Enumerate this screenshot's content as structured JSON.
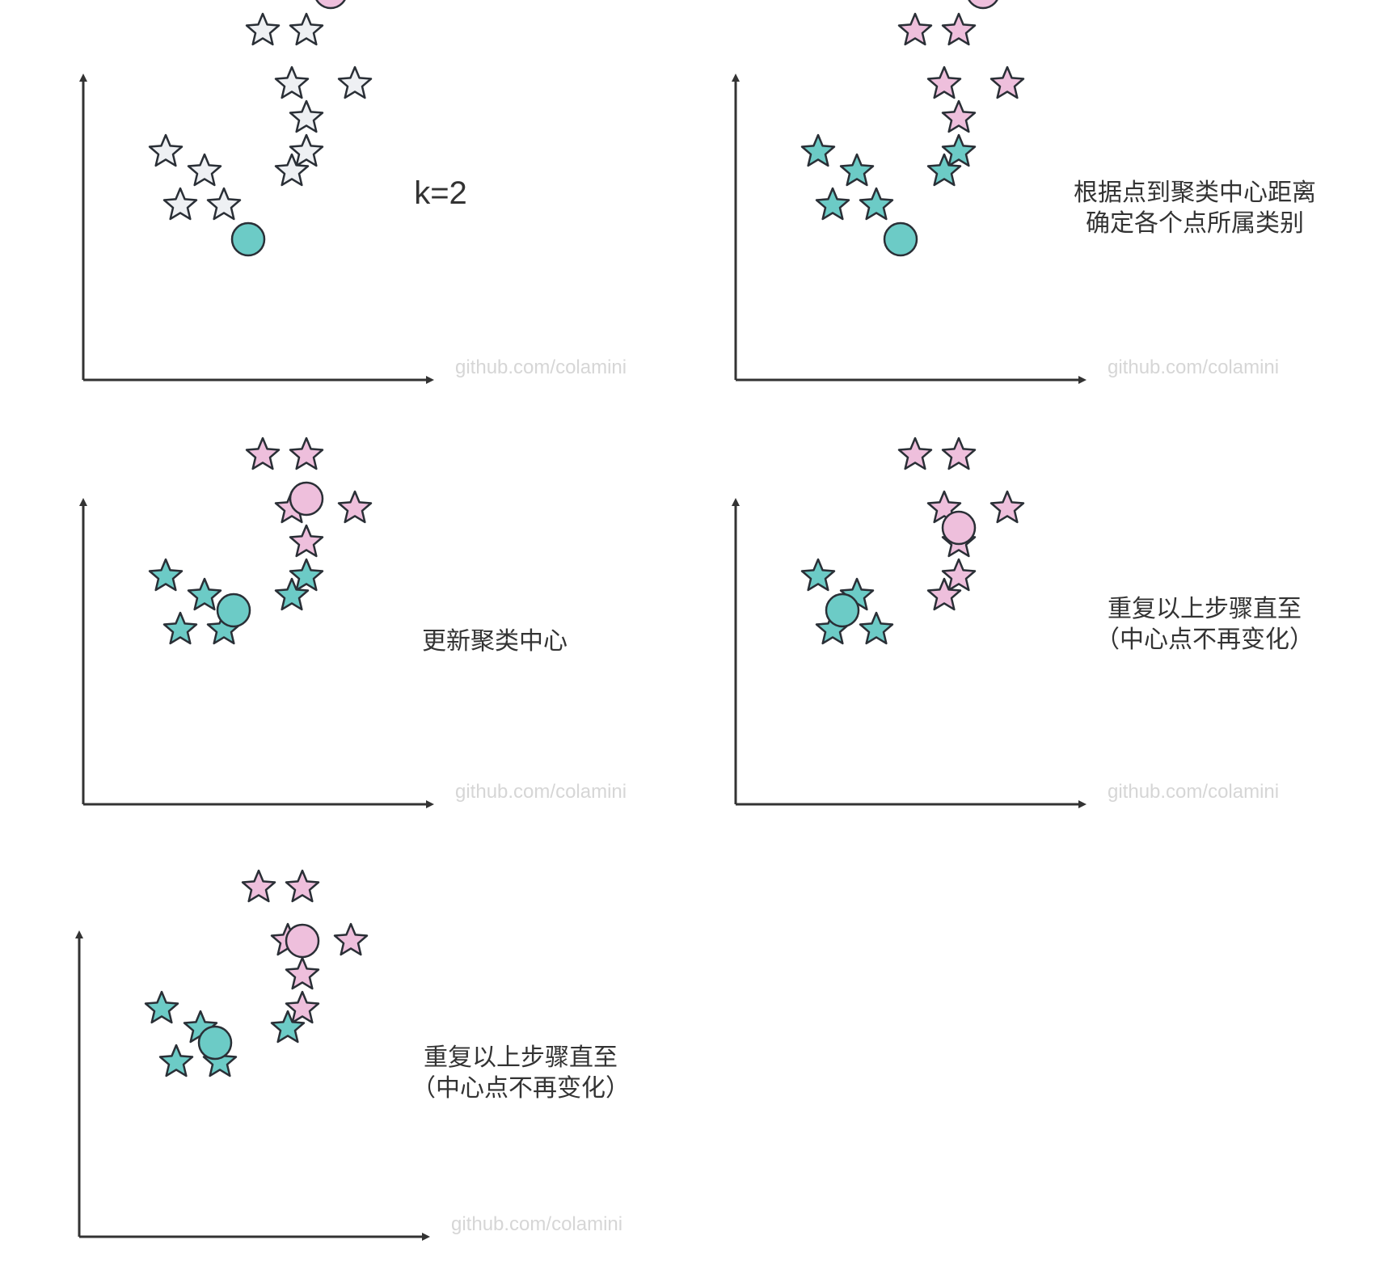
{
  "colors": {
    "axis": "#333333",
    "outline": "#2a2f36",
    "unassigned": "#eef0f3",
    "cluster_teal": "#6ccbc6",
    "cluster_pink": "#eebfdc",
    "watermark": "#d6d6d6",
    "text": "#333333"
  },
  "watermark": "github.com/colamini",
  "panels": [
    {
      "caption": [
        "k=2"
      ],
      "stars": [
        {
          "x": 3.2,
          "y": 7.2,
          "cluster": "none"
        },
        {
          "x": 4.1,
          "y": 7.2,
          "cluster": "none"
        },
        {
          "x": 3.8,
          "y": 6.1,
          "cluster": "none"
        },
        {
          "x": 5.1,
          "y": 6.1,
          "cluster": "none"
        },
        {
          "x": 4.1,
          "y": 5.4,
          "cluster": "none"
        },
        {
          "x": 4.1,
          "y": 4.7,
          "cluster": "none"
        },
        {
          "x": 3.8,
          "y": 4.3,
          "cluster": "none"
        },
        {
          "x": 1.2,
          "y": 4.7,
          "cluster": "none"
        },
        {
          "x": 2.0,
          "y": 4.3,
          "cluster": "none"
        },
        {
          "x": 1.5,
          "y": 3.6,
          "cluster": "none"
        },
        {
          "x": 2.4,
          "y": 3.6,
          "cluster": "none"
        }
      ],
      "centers": [
        {
          "x": 4.6,
          "y": 8.0,
          "cluster": "pink"
        },
        {
          "x": 2.9,
          "y": 2.9,
          "cluster": "teal"
        }
      ]
    },
    {
      "caption": [
        "根据点到聚类中心距离",
        "确定各个点所属类别"
      ],
      "stars": [
        {
          "x": 3.2,
          "y": 7.2,
          "cluster": "pink"
        },
        {
          "x": 4.1,
          "y": 7.2,
          "cluster": "pink"
        },
        {
          "x": 3.8,
          "y": 6.1,
          "cluster": "pink"
        },
        {
          "x": 5.1,
          "y": 6.1,
          "cluster": "pink"
        },
        {
          "x": 4.1,
          "y": 5.4,
          "cluster": "pink"
        },
        {
          "x": 4.1,
          "y": 4.7,
          "cluster": "teal"
        },
        {
          "x": 3.8,
          "y": 4.3,
          "cluster": "teal"
        },
        {
          "x": 1.2,
          "y": 4.7,
          "cluster": "teal"
        },
        {
          "x": 2.0,
          "y": 4.3,
          "cluster": "teal"
        },
        {
          "x": 1.5,
          "y": 3.6,
          "cluster": "teal"
        },
        {
          "x": 2.4,
          "y": 3.6,
          "cluster": "teal"
        }
      ],
      "centers": [
        {
          "x": 4.6,
          "y": 8.0,
          "cluster": "pink"
        },
        {
          "x": 2.9,
          "y": 2.9,
          "cluster": "teal"
        }
      ]
    },
    {
      "caption": [
        "更新聚类中心"
      ],
      "stars": [
        {
          "x": 3.2,
          "y": 7.2,
          "cluster": "pink"
        },
        {
          "x": 4.1,
          "y": 7.2,
          "cluster": "pink"
        },
        {
          "x": 3.8,
          "y": 6.1,
          "cluster": "pink"
        },
        {
          "x": 5.1,
          "y": 6.1,
          "cluster": "pink"
        },
        {
          "x": 4.1,
          "y": 5.4,
          "cluster": "pink"
        },
        {
          "x": 4.1,
          "y": 4.7,
          "cluster": "teal"
        },
        {
          "x": 3.8,
          "y": 4.3,
          "cluster": "teal"
        },
        {
          "x": 1.2,
          "y": 4.7,
          "cluster": "teal"
        },
        {
          "x": 2.0,
          "y": 4.3,
          "cluster": "teal"
        },
        {
          "x": 1.5,
          "y": 3.6,
          "cluster": "teal"
        },
        {
          "x": 2.4,
          "y": 3.6,
          "cluster": "teal"
        }
      ],
      "centers": [
        {
          "x": 4.1,
          "y": 6.3,
          "cluster": "pink"
        },
        {
          "x": 2.6,
          "y": 4.0,
          "cluster": "teal"
        }
      ]
    },
    {
      "caption": [
        "重复以上步骤直至",
        "（中心点不再变化）"
      ],
      "stars": [
        {
          "x": 3.2,
          "y": 7.2,
          "cluster": "pink"
        },
        {
          "x": 4.1,
          "y": 7.2,
          "cluster": "pink"
        },
        {
          "x": 3.8,
          "y": 6.1,
          "cluster": "pink"
        },
        {
          "x": 5.1,
          "y": 6.1,
          "cluster": "pink"
        },
        {
          "x": 4.1,
          "y": 5.4,
          "cluster": "pink"
        },
        {
          "x": 4.1,
          "y": 4.7,
          "cluster": "pink"
        },
        {
          "x": 3.8,
          "y": 4.3,
          "cluster": "pink"
        },
        {
          "x": 1.2,
          "y": 4.7,
          "cluster": "teal"
        },
        {
          "x": 2.0,
          "y": 4.3,
          "cluster": "teal"
        },
        {
          "x": 1.5,
          "y": 3.6,
          "cluster": "teal"
        },
        {
          "x": 2.4,
          "y": 3.6,
          "cluster": "teal"
        }
      ],
      "centers": [
        {
          "x": 4.1,
          "y": 5.7,
          "cluster": "pink"
        },
        {
          "x": 1.7,
          "y": 4.0,
          "cluster": "teal"
        }
      ]
    },
    {
      "caption": [
        "重复以上步骤直至",
        "（中心点不再变化）"
      ],
      "stars": [
        {
          "x": 3.2,
          "y": 7.2,
          "cluster": "pink"
        },
        {
          "x": 4.1,
          "y": 7.2,
          "cluster": "pink"
        },
        {
          "x": 3.8,
          "y": 6.1,
          "cluster": "pink"
        },
        {
          "x": 5.1,
          "y": 6.1,
          "cluster": "pink"
        },
        {
          "x": 4.1,
          "y": 5.4,
          "cluster": "pink"
        },
        {
          "x": 4.1,
          "y": 4.7,
          "cluster": "pink"
        },
        {
          "x": 3.8,
          "y": 4.3,
          "cluster": "teal"
        },
        {
          "x": 1.2,
          "y": 4.7,
          "cluster": "teal"
        },
        {
          "x": 2.0,
          "y": 4.3,
          "cluster": "teal"
        },
        {
          "x": 1.5,
          "y": 3.6,
          "cluster": "teal"
        },
        {
          "x": 2.4,
          "y": 3.6,
          "cluster": "teal"
        }
      ],
      "centers": [
        {
          "x": 4.1,
          "y": 6.1,
          "cluster": "pink"
        },
        {
          "x": 2.3,
          "y": 4.0,
          "cluster": "teal"
        }
      ]
    }
  ]
}
